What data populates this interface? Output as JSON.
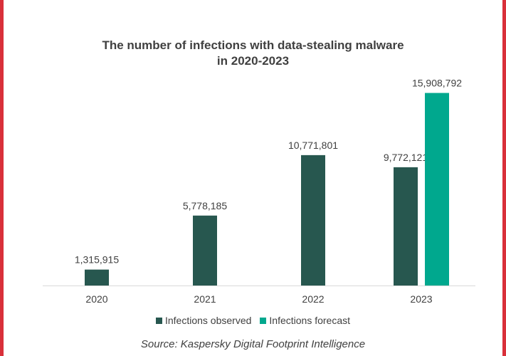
{
  "chart_data": {
    "type": "bar",
    "title_lines": [
      "The number of infections with data-stealing malware",
      "in 2020-2023"
    ],
    "categories": [
      "2020",
      "2021",
      "2022",
      "2023"
    ],
    "series": [
      {
        "name": "Infections observed",
        "color": "#27574f",
        "values": [
          1315915,
          5778185,
          10771801,
          9772121
        ],
        "labels": [
          "1,315,915",
          "5,778,185",
          "10,771,801",
          "9,772,121"
        ]
      },
      {
        "name": "Infections forecast",
        "color": "#00a88e",
        "values": [
          null,
          null,
          null,
          15908792
        ],
        "labels": [
          "",
          "",
          "",
          "15,908,792"
        ]
      }
    ],
    "ylim": [
      0,
      18000000
    ],
    "grid": false,
    "legend_position": "bottom"
  },
  "source": "Source: Kaspersky Digital Footprint Intelligence",
  "colors": {
    "frame": "#d9303a",
    "text": "#404040",
    "axis": "#d9d9d9"
  }
}
